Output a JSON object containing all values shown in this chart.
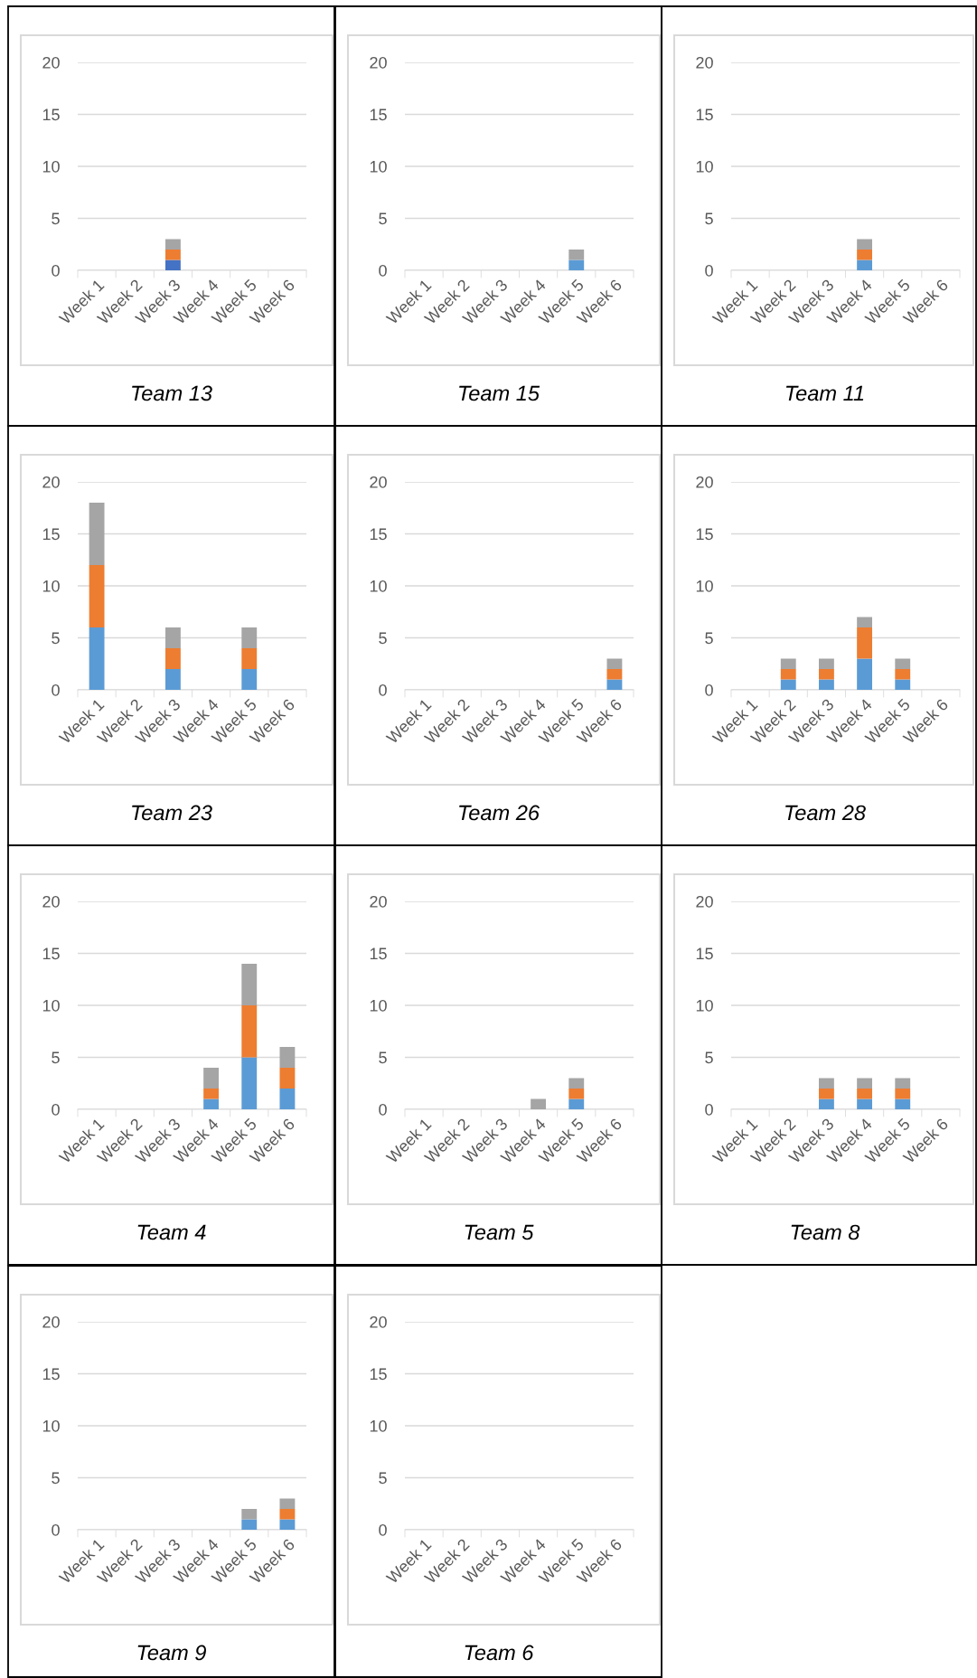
{
  "chart_data": [
    {
      "type": "bar",
      "stacked": true,
      "title": "Team 13",
      "categories": [
        "Week 1",
        "Week 2",
        "Week 3",
        "Week 4",
        "Week 5",
        "Week 6"
      ],
      "ylim": [
        0,
        20
      ],
      "yticks": [
        0,
        5,
        10,
        15,
        20
      ],
      "grid": "y",
      "series": [
        {
          "color": "#4472c4",
          "values": [
            0,
            0,
            1,
            0,
            0,
            0
          ]
        },
        {
          "color": "#ed7d31",
          "values": [
            0,
            0,
            1,
            0,
            0,
            0
          ]
        },
        {
          "color": "#a5a5a5",
          "values": [
            0,
            0,
            1,
            0,
            0,
            0
          ]
        }
      ]
    },
    {
      "type": "bar",
      "stacked": true,
      "title": "Team 15",
      "categories": [
        "Week 1",
        "Week 2",
        "Week 3",
        "Week 4",
        "Week 5",
        "Week 6"
      ],
      "ylim": [
        0,
        20
      ],
      "yticks": [
        0,
        5,
        10,
        15,
        20
      ],
      "grid": "y",
      "series": [
        {
          "color": "#5b9bd5",
          "values": [
            0,
            0,
            0,
            0,
            1,
            0
          ]
        },
        {
          "color": "#ed7d31",
          "values": [
            0,
            0,
            0,
            0,
            0,
            0
          ]
        },
        {
          "color": "#a5a5a5",
          "values": [
            0,
            0,
            0,
            0,
            1,
            0
          ]
        }
      ]
    },
    {
      "type": "bar",
      "stacked": true,
      "title": "Team 11",
      "categories": [
        "Week 1",
        "Week 2",
        "Week 3",
        "Week 4",
        "Week 5",
        "Week 6"
      ],
      "ylim": [
        0,
        20
      ],
      "yticks": [
        0,
        5,
        10,
        15,
        20
      ],
      "grid": "y",
      "series": [
        {
          "color": "#5b9bd5",
          "values": [
            0,
            0,
            0,
            1,
            0,
            0
          ]
        },
        {
          "color": "#ed7d31",
          "values": [
            0,
            0,
            0,
            1,
            0,
            0
          ]
        },
        {
          "color": "#a5a5a5",
          "values": [
            0,
            0,
            0,
            1,
            0,
            0
          ]
        }
      ]
    },
    {
      "type": "bar",
      "stacked": true,
      "title": "Team 23",
      "categories": [
        "Week 1",
        "Week 2",
        "Week 3",
        "Week 4",
        "Week 5",
        "Week 6"
      ],
      "ylim": [
        0,
        20
      ],
      "yticks": [
        0,
        5,
        10,
        15,
        20
      ],
      "grid": "y",
      "series": [
        {
          "color": "#5b9bd5",
          "values": [
            6,
            0,
            2,
            0,
            2,
            0
          ]
        },
        {
          "color": "#ed7d31",
          "values": [
            6,
            0,
            2,
            0,
            2,
            0
          ]
        },
        {
          "color": "#a5a5a5",
          "values": [
            6,
            0,
            2,
            0,
            2,
            0
          ]
        }
      ]
    },
    {
      "type": "bar",
      "stacked": true,
      "title": "Team 26",
      "categories": [
        "Week 1",
        "Week 2",
        "Week 3",
        "Week 4",
        "Week 5",
        "Week 6"
      ],
      "ylim": [
        0,
        20
      ],
      "yticks": [
        0,
        5,
        10,
        15,
        20
      ],
      "grid": "y",
      "series": [
        {
          "color": "#5b9bd5",
          "values": [
            0,
            0,
            0,
            0,
            0,
            1
          ]
        },
        {
          "color": "#ed7d31",
          "values": [
            0,
            0,
            0,
            0,
            0,
            1
          ]
        },
        {
          "color": "#a5a5a5",
          "values": [
            0,
            0,
            0,
            0,
            0,
            1
          ]
        }
      ]
    },
    {
      "type": "bar",
      "stacked": true,
      "title": "Team 28",
      "categories": [
        "Week 1",
        "Week 2",
        "Week 3",
        "Week 4",
        "Week 5",
        "Week 6"
      ],
      "ylim": [
        0,
        20
      ],
      "yticks": [
        0,
        5,
        10,
        15,
        20
      ],
      "grid": "y",
      "series": [
        {
          "color": "#5b9bd5",
          "values": [
            0,
            1,
            1,
            3,
            1,
            0
          ]
        },
        {
          "color": "#ed7d31",
          "values": [
            0,
            1,
            1,
            3,
            1,
            0
          ]
        },
        {
          "color": "#a5a5a5",
          "values": [
            0,
            1,
            1,
            1,
            1,
            0
          ]
        }
      ]
    },
    {
      "type": "bar",
      "stacked": true,
      "title": "Team 4",
      "categories": [
        "Week 1",
        "Week 2",
        "Week 3",
        "Week 4",
        "Week 5",
        "Week 6"
      ],
      "ylim": [
        0,
        20
      ],
      "yticks": [
        0,
        5,
        10,
        15,
        20
      ],
      "grid": "y",
      "series": [
        {
          "color": "#5b9bd5",
          "values": [
            0,
            0,
            0,
            1,
            5,
            2
          ]
        },
        {
          "color": "#ed7d31",
          "values": [
            0,
            0,
            0,
            1,
            5,
            2
          ]
        },
        {
          "color": "#a5a5a5",
          "values": [
            0,
            0,
            0,
            2,
            4,
            2
          ]
        }
      ]
    },
    {
      "type": "bar",
      "stacked": true,
      "title": "Team 5",
      "categories": [
        "Week 1",
        "Week 2",
        "Week 3",
        "Week 4",
        "Week 5",
        "Week 6"
      ],
      "ylim": [
        0,
        20
      ],
      "yticks": [
        0,
        5,
        10,
        15,
        20
      ],
      "grid": "y",
      "series": [
        {
          "color": "#5b9bd5",
          "values": [
            0,
            0,
            0,
            0,
            1,
            0
          ]
        },
        {
          "color": "#ed7d31",
          "values": [
            0,
            0,
            0,
            0,
            1,
            0
          ]
        },
        {
          "color": "#a5a5a5",
          "values": [
            0,
            0,
            0,
            1,
            1,
            0
          ]
        }
      ]
    },
    {
      "type": "bar",
      "stacked": true,
      "title": "Team 8",
      "categories": [
        "Week 1",
        "Week 2",
        "Week 3",
        "Week 4",
        "Week 5",
        "Week 6"
      ],
      "ylim": [
        0,
        20
      ],
      "yticks": [
        0,
        5,
        10,
        15,
        20
      ],
      "grid": "y",
      "series": [
        {
          "color": "#5b9bd5",
          "values": [
            0,
            0,
            1,
            1,
            1,
            0
          ]
        },
        {
          "color": "#ed7d31",
          "values": [
            0,
            0,
            1,
            1,
            1,
            0
          ]
        },
        {
          "color": "#a5a5a5",
          "values": [
            0,
            0,
            1,
            1,
            1,
            0
          ]
        }
      ]
    },
    {
      "type": "bar",
      "stacked": true,
      "title": "Team 9",
      "categories": [
        "Week 1",
        "Week 2",
        "Week 3",
        "Week 4",
        "Week 5",
        "Week 6"
      ],
      "ylim": [
        0,
        20
      ],
      "yticks": [
        0,
        5,
        10,
        15,
        20
      ],
      "grid": "y",
      "series": [
        {
          "color": "#5b9bd5",
          "values": [
            0,
            0,
            0,
            0,
            1,
            1
          ]
        },
        {
          "color": "#ed7d31",
          "values": [
            0,
            0,
            0,
            0,
            0,
            1
          ]
        },
        {
          "color": "#a5a5a5",
          "values": [
            0,
            0,
            0,
            0,
            1,
            1
          ]
        }
      ]
    },
    {
      "type": "bar",
      "stacked": true,
      "title": "Team 6",
      "categories": [
        "Week 1",
        "Week 2",
        "Week 3",
        "Week 4",
        "Week 5",
        "Week 6"
      ],
      "ylim": [
        0,
        20
      ],
      "yticks": [
        0,
        5,
        10,
        15,
        20
      ],
      "grid": "y",
      "series": [
        {
          "color": "#5b9bd5",
          "values": [
            0,
            0,
            0,
            0,
            0,
            0
          ]
        },
        {
          "color": "#ed7d31",
          "values": [
            0,
            0,
            0,
            0,
            0,
            0
          ]
        },
        {
          "color": "#a5a5a5",
          "values": [
            0,
            0,
            0,
            0,
            0,
            0
          ]
        }
      ]
    }
  ]
}
